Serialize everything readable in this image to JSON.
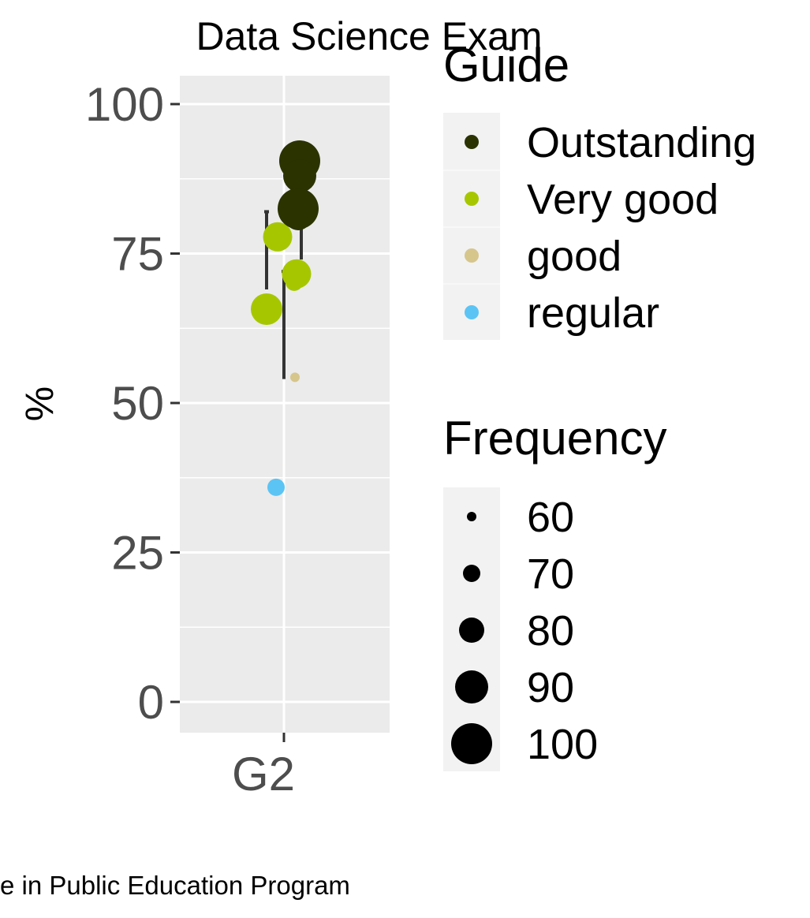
{
  "chart_data": {
    "type": "scatter",
    "title": "Data Science Exam",
    "xlabel": "",
    "ylabel": "%",
    "ylim": [
      -5,
      105
    ],
    "yticks": [
      0,
      25,
      50,
      75,
      100
    ],
    "categories": [
      "G2"
    ],
    "caption": "e in Public Education Program",
    "grid": true,
    "range_bars": [
      {
        "category": "G2",
        "y_low": 69,
        "y_high": 82
      },
      {
        "category": "G2",
        "y_low": 54,
        "y_high": 72
      },
      {
        "category": "G2",
        "y_low": 74,
        "y_high": 82
      }
    ],
    "points": [
      {
        "category": "G2",
        "y": 90.5,
        "guide": "Outstanding",
        "frequency": 100
      },
      {
        "category": "G2",
        "y": 88,
        "guide": "Outstanding",
        "frequency": 90
      },
      {
        "category": "G2",
        "y": 81,
        "guide": "Outstanding",
        "frequency": 80
      },
      {
        "category": "G2",
        "y": 82.5,
        "guide": "Outstanding",
        "frequency": 100
      },
      {
        "category": "G2",
        "y": 77.8,
        "guide": "Very good",
        "frequency": 85
      },
      {
        "category": "G2",
        "y": 71.6,
        "guide": "Very good",
        "frequency": 85
      },
      {
        "category": "G2",
        "y": 70.2,
        "guide": "Very good",
        "frequency": 70
      },
      {
        "category": "G2",
        "y": 65.7,
        "guide": "Very good",
        "frequency": 88
      },
      {
        "category": "G2",
        "y": 54.3,
        "guide": "good",
        "frequency": 60
      },
      {
        "category": "G2",
        "y": 35.9,
        "guide": "regular",
        "frequency": 70
      }
    ],
    "legend_guide": {
      "title": "Guide",
      "entries": [
        {
          "label": "Outstanding",
          "color": "#2b3300"
        },
        {
          "label": "Very good",
          "color": "#a6c700"
        },
        {
          "label": "good",
          "color": "#d6c68c"
        },
        {
          "label": "regular",
          "color": "#5bc4f5"
        }
      ]
    },
    "legend_frequency": {
      "title": "Frequency",
      "entries": [
        60,
        70,
        80,
        90,
        100
      ]
    }
  }
}
